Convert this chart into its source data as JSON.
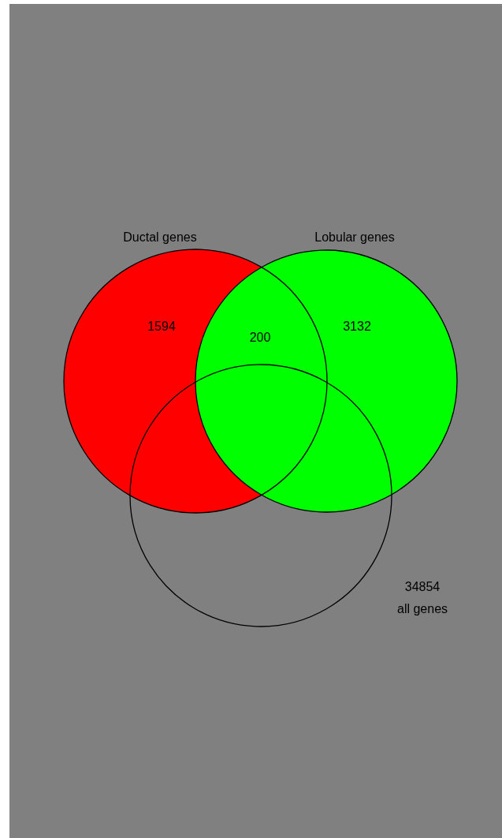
{
  "chart_data": {
    "type": "other",
    "categories": [
      "Ductal genes",
      null,
      "Lobular genes",
      "all genes"
    ],
    "values": [
      1594,
      200,
      3132,
      34854
    ],
    "colors": [
      "#ff0000",
      "#00ff00",
      "#00ff00",
      "#000000"
    ],
    "data_labels": true
  }
}
